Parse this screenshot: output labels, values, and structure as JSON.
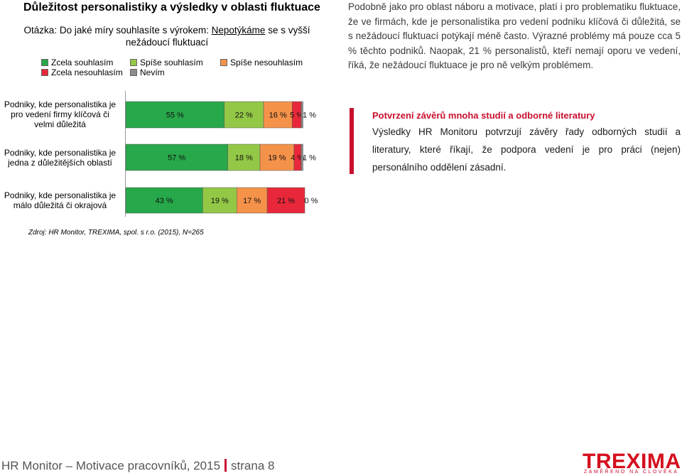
{
  "header": {
    "title": "Důležitost personalistiky a výsledky v oblasti fluktuace",
    "question_prefix": "Otázka: Do jaké míry souhlasíte s výrokem: ",
    "question_underlined": "Nepotýkáme",
    "question_suffix": " se s vyšší nežádoucí fluktuací"
  },
  "legend": [
    {
      "label": "Zcela souhlasím",
      "color": "#27a84a"
    },
    {
      "label": "Spíše souhlasím",
      "color": "#93c847"
    },
    {
      "label": "Spíše nesouhlasím",
      "color": "#f5924a"
    },
    {
      "label": "Zcela nesouhlasím",
      "color": "#e8283a"
    },
    {
      "label": "Nevím",
      "color": "#8c8c8c"
    }
  ],
  "chart_data": {
    "type": "bar",
    "orientation": "horizontal",
    "stacked": true,
    "categories": [
      "Podniky, kde personalistika je pro vedení firmy klíčová či velmi důležitá",
      "Podniky, kde personalistika je jedna z důležitějších oblastí",
      "Podniky, kde personalistika je málo důležitá či okrajová"
    ],
    "series": [
      {
        "name": "Zcela souhlasím",
        "values": [
          55,
          57,
          43
        ]
      },
      {
        "name": "Spíše souhlasím",
        "values": [
          22,
          18,
          19
        ]
      },
      {
        "name": "Spíše nesouhlasím",
        "values": [
          16,
          19,
          17
        ]
      },
      {
        "name": "Zcela nesouhlasím",
        "values": [
          5,
          4,
          21
        ]
      },
      {
        "name": "Nevím",
        "values": [
          1,
          1,
          0
        ]
      }
    ],
    "value_suffix": " %",
    "legend_position": "top-left",
    "grid": false
  },
  "text": {
    "paragraph": "Podobně jako pro oblast náboru a motivace, platí i pro problematiku fluktuace, že ve firmách, kde je personalistika pro vedení podniku klíčová či důležitá, se s nežádoucí fluktuací potýkají méně často. Výrazné problémy má pouze cca 5 % těchto podniků. Naopak, 21 % personalistů, kteří nemají oporu ve vedení, říká, že nežádoucí fluktuace je pro ně velkým problémem.",
    "note_title": "Potvrzení závěrů mnoha studií a odborné literatury",
    "note_body": "Výsledky HR Monitoru potvrzují závěry řady odborných studií a literatury, které říkají, že podpora vedení je pro práci (nejen) personálního oddělení zásadní.",
    "source": "Zdroj: HR Monitor, TREXIMA, spol. s r.o. (2015), N=265"
  },
  "footer": {
    "left": "HR Monitor – Motivace pracovníků, 2015",
    "page": "strana 8",
    "logo": "TREXIMA",
    "tagline": "ZAMĚŘENO NA ČLOVĚKA"
  }
}
